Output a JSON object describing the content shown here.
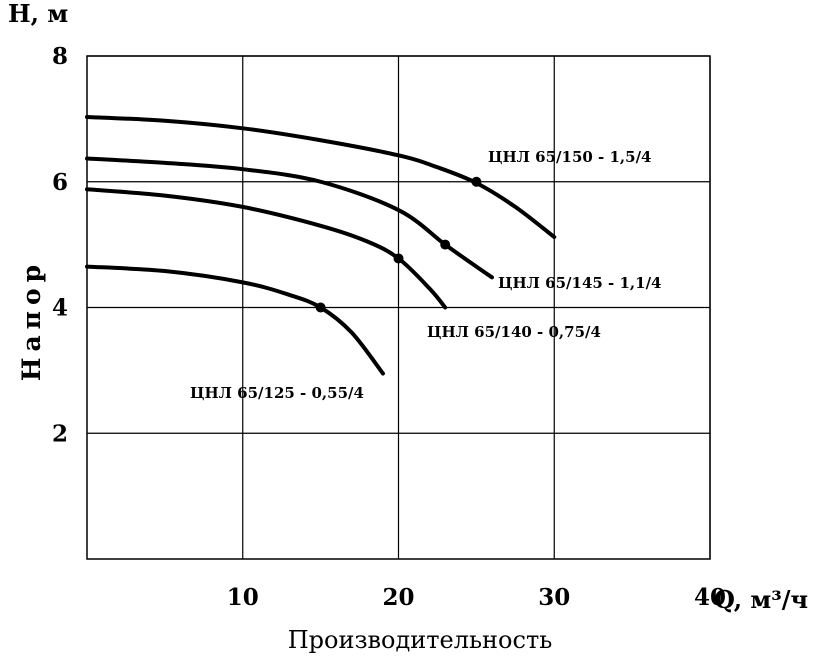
{
  "chart_data": {
    "type": "line",
    "xlabel": "Производительность",
    "ylabel": "Напор",
    "x_axis_unit": "Q, м³/ч",
    "y_axis_unit": "Н, м",
    "xlim": [
      0,
      40
    ],
    "ylim": [
      0,
      8
    ],
    "x_ticks": [
      "10",
      "20",
      "30",
      "40"
    ],
    "y_ticks": [
      "2",
      "4",
      "6",
      "8"
    ],
    "grid": true,
    "series": [
      {
        "name": "ЦНЛ 65/150 - 1,5/4",
        "x": [
          0,
          5,
          10,
          15,
          20,
          22.5,
          25,
          27.5,
          30
        ],
        "y": [
          7.03,
          6.97,
          6.85,
          6.66,
          6.42,
          6.23,
          5.98,
          5.6,
          5.12
        ],
        "operating_point": {
          "x": 25,
          "y": 6.0
        }
      },
      {
        "name": "ЦНЛ 65/145 - 1,1/4",
        "x": [
          0,
          5,
          10,
          15,
          20,
          23,
          25,
          26
        ],
        "y": [
          6.37,
          6.3,
          6.2,
          6.0,
          5.55,
          5.0,
          4.65,
          4.48
        ],
        "operating_point": {
          "x": 23,
          "y": 5.0
        }
      },
      {
        "name": "ЦНЛ 65/140 - 0,75/4",
        "x": [
          0,
          5,
          10,
          15,
          18,
          20,
          22,
          23
        ],
        "y": [
          5.88,
          5.78,
          5.6,
          5.3,
          5.05,
          4.78,
          4.3,
          4.0
        ],
        "operating_point": {
          "x": 20,
          "y": 4.78
        }
      },
      {
        "name": "ЦНЛ 65/125 - 0,55/4",
        "x": [
          0,
          5,
          10,
          13,
          15,
          17,
          19
        ],
        "y": [
          4.65,
          4.58,
          4.4,
          4.2,
          4.0,
          3.6,
          2.95
        ],
        "operating_point": {
          "x": 15,
          "y": 4.0
        }
      }
    ]
  }
}
